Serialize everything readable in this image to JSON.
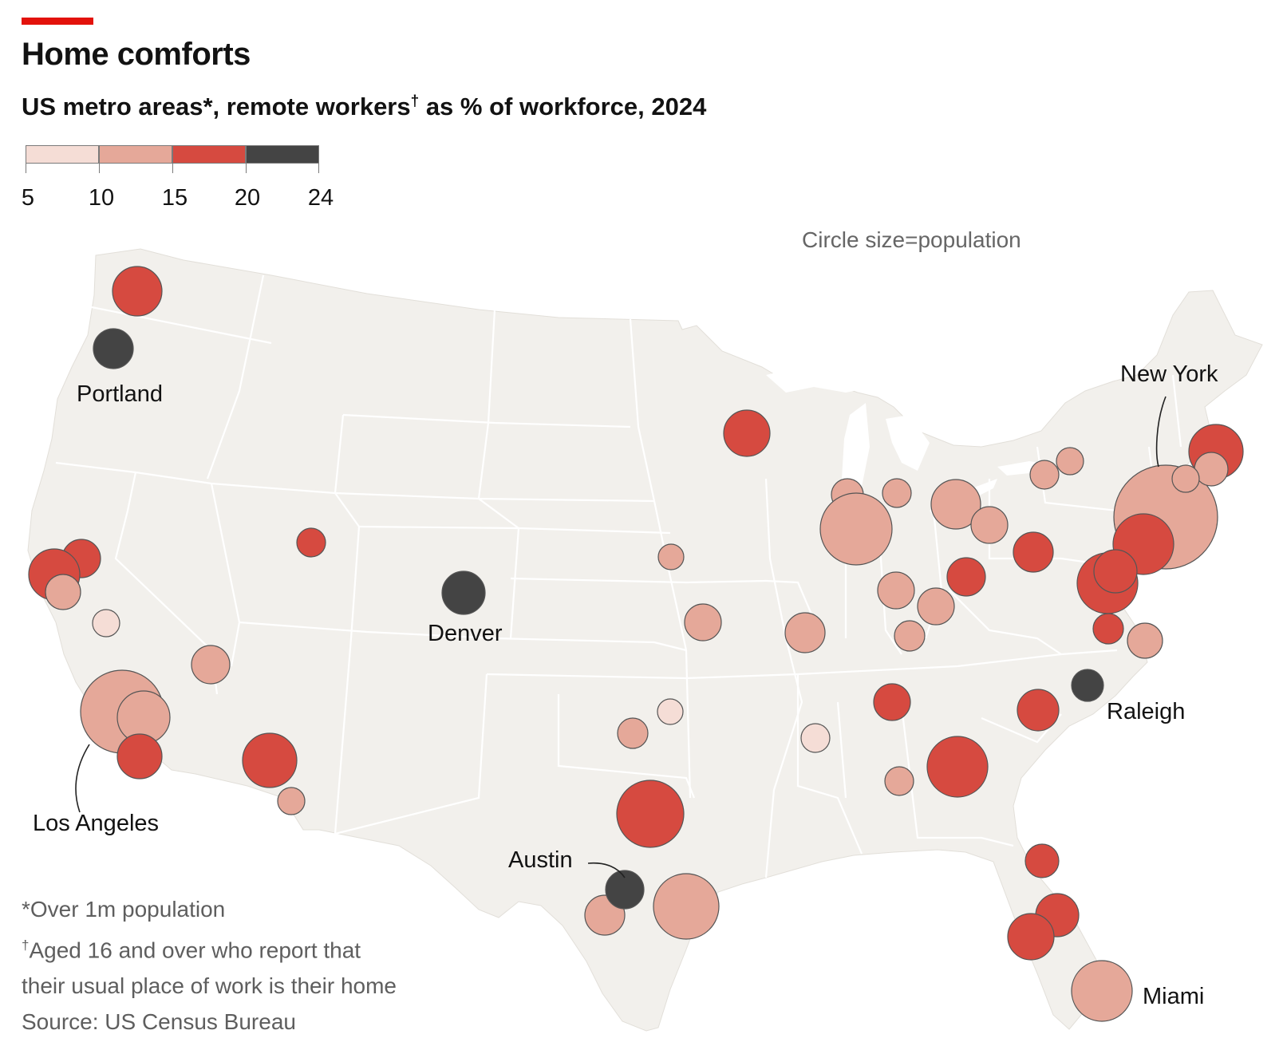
{
  "title": "Home comforts",
  "subtitle_main": "US metro areas*, remote workers",
  "subtitle_mark": "†",
  "subtitle_rest": " as % of workforce, 2024",
  "size_note": "Circle size=population",
  "legend": {
    "ticks": [
      "5",
      "10",
      "15",
      "20",
      "24"
    ],
    "colors": [
      "#f5ddd6",
      "#e5a899",
      "#d64a40",
      "#444444"
    ]
  },
  "notes": {
    "star": "*Over 1m population",
    "dagger_mark": "†",
    "dagger_line1": "Aged 16 and over who report that",
    "dagger_line2": "their usual place of work is their home",
    "source": "Source: US Census Bureau"
  },
  "city_labels": {
    "portland": "Portland",
    "denver": "Denver",
    "los_angeles": "Los Angeles",
    "austin": "Austin",
    "new_york": "New York",
    "raleigh": "Raleigh",
    "miami": "Miami"
  },
  "colors": {
    "land": "#f2f0ec",
    "border": "#ffffff",
    "bin1": "#f5ddd6",
    "bin2": "#e5a899",
    "bin3": "#d64a40",
    "bin4": "#444444"
  }
}
